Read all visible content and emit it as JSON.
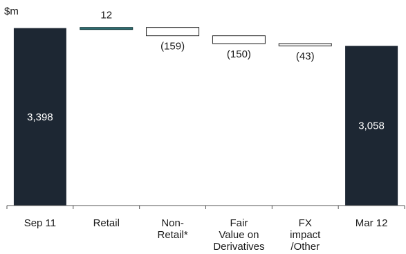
{
  "chart_data": {
    "type": "bar",
    "subtype": "waterfall",
    "unit_label": "$m",
    "categories": [
      [
        "Sep 11"
      ],
      [
        "Retail"
      ],
      [
        "Non-",
        "Retail*"
      ],
      [
        "Fair",
        "Value on",
        "Derivatives"
      ],
      [
        "FX",
        "impact",
        "/Other"
      ],
      [
        "Mar 12"
      ]
    ],
    "steps": [
      {
        "kind": "total",
        "value": 3398,
        "label": "3,398"
      },
      {
        "kind": "increase",
        "value": 12,
        "label": "12"
      },
      {
        "kind": "decrease",
        "value": -159,
        "label": "(159)"
      },
      {
        "kind": "decrease",
        "value": -150,
        "label": "(150)"
      },
      {
        "kind": "decrease",
        "value": -43,
        "label": "(43)"
      },
      {
        "kind": "total",
        "value": 3058,
        "label": "3,058"
      }
    ],
    "ylim": [
      0,
      3750
    ],
    "grid": false,
    "legend": "none",
    "colors": {
      "total": "#1d2733",
      "increase": "#2f6f73",
      "decrease_fill": "#ffffff",
      "decrease_stroke": "#222222",
      "axis": "#555555"
    }
  }
}
